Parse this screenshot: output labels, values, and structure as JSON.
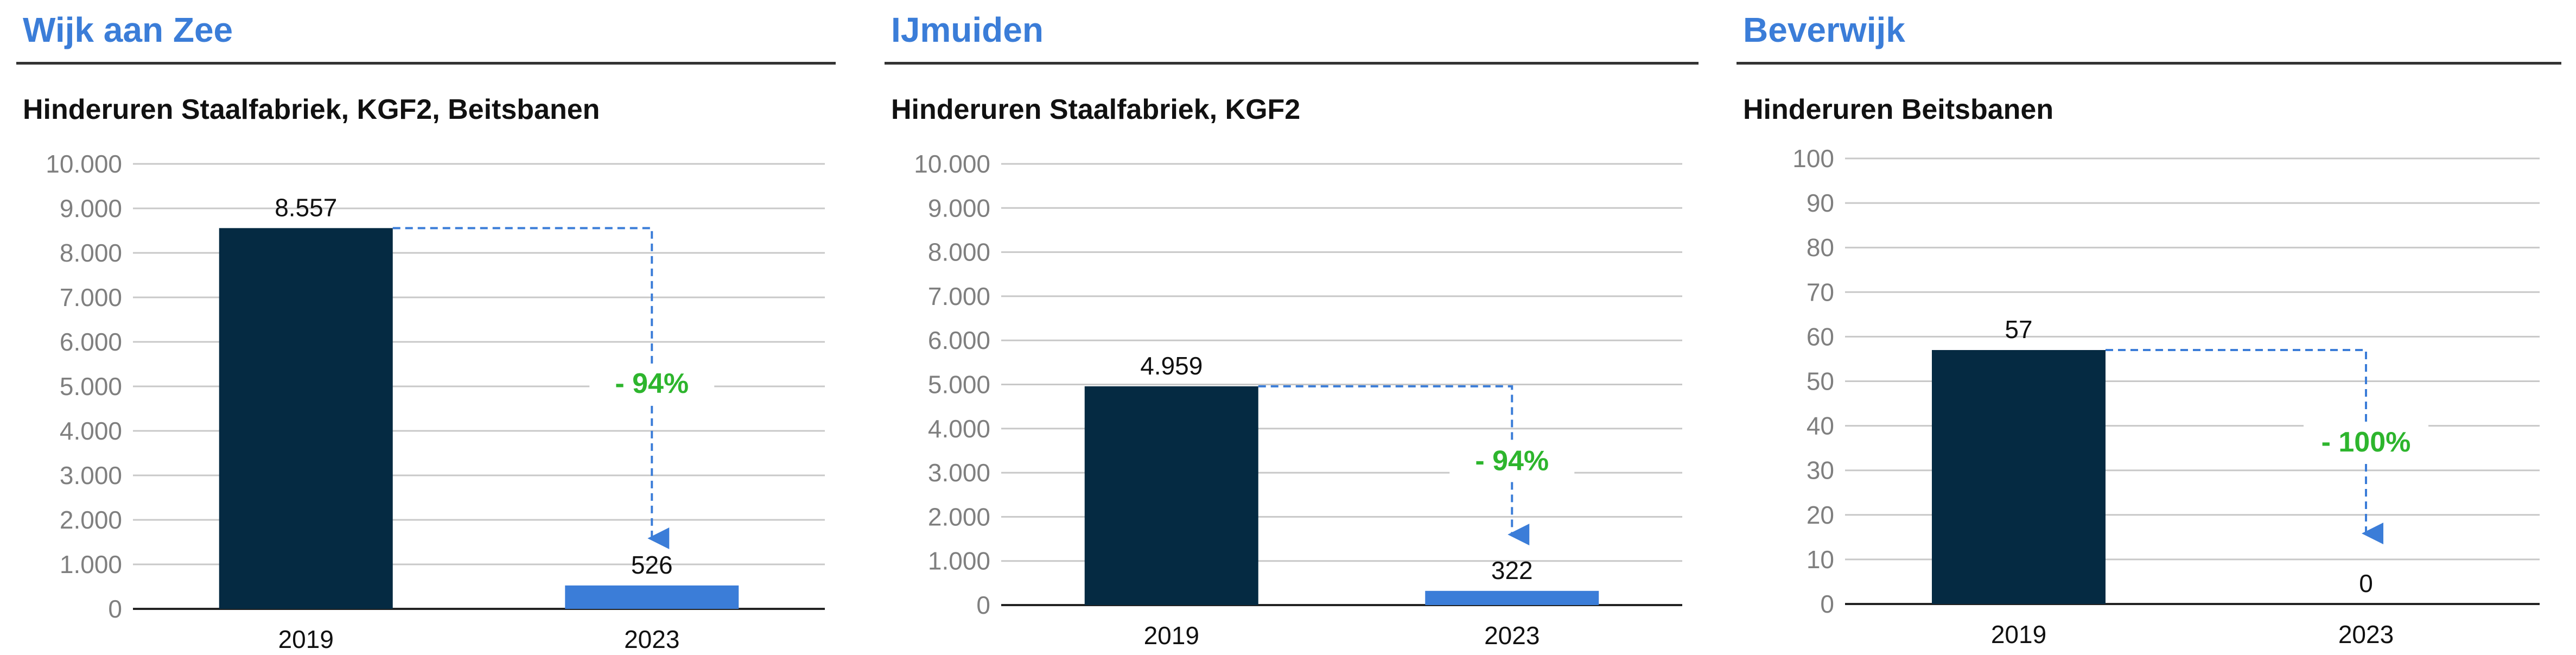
{
  "colors": {
    "title_blue": "#3B7DD8",
    "bar_2019": "#052A42",
    "bar_2023": "#3B7DD8",
    "change_green": "#2DB52D",
    "arrow_blue": "#3B7DD8",
    "grid": "#C8C8C8"
  },
  "panels": [
    {
      "region": "Wijk aan Zee",
      "chart_title": "Hinderuren Staalfabriek, KGF2, Beitsbanen",
      "change_label": "- 94%"
    },
    {
      "region": "IJmuiden",
      "chart_title": "Hinderuren Staalfabriek, KGF2",
      "change_label": "- 94%"
    },
    {
      "region": "Beverwijk",
      "chart_title": "Hinderuren Beitsbanen",
      "change_label": "- 100%"
    }
  ],
  "chart_data": [
    {
      "type": "bar",
      "title": "Hinderuren Staalfabriek, KGF2, Beitsbanen",
      "categories": [
        "2019",
        "2023"
      ],
      "values": [
        8557,
        526
      ],
      "value_labels": [
        "8.557",
        "526"
      ],
      "ylim": [
        0,
        10000
      ],
      "yticks": [
        0,
        1000,
        2000,
        3000,
        4000,
        5000,
        6000,
        7000,
        8000,
        9000,
        10000
      ],
      "ytick_labels": [
        "0",
        "1.000",
        "2.000",
        "3.000",
        "4.000",
        "5.000",
        "6.000",
        "7.000",
        "8.000",
        "9.000",
        "10.000"
      ],
      "grid": true,
      "annotation": "- 94%"
    },
    {
      "type": "bar",
      "title": "Hinderuren Staalfabriek, KGF2",
      "categories": [
        "2019",
        "2023"
      ],
      "values": [
        4959,
        322
      ],
      "value_labels": [
        "4.959",
        "322"
      ],
      "ylim": [
        0,
        10000
      ],
      "yticks": [
        0,
        1000,
        2000,
        3000,
        4000,
        5000,
        6000,
        7000,
        8000,
        9000,
        10000
      ],
      "ytick_labels": [
        "0",
        "1.000",
        "2.000",
        "3.000",
        "4.000",
        "5.000",
        "6.000",
        "7.000",
        "8.000",
        "9.000",
        "10.000"
      ],
      "grid": true,
      "annotation": "- 94%"
    },
    {
      "type": "bar",
      "title": "Hinderuren Beitsbanen",
      "categories": [
        "2019",
        "2023"
      ],
      "values": [
        57,
        0
      ],
      "value_labels": [
        "57",
        "0"
      ],
      "ylim": [
        0,
        100
      ],
      "yticks": [
        0,
        10,
        20,
        30,
        40,
        50,
        60,
        70,
        80,
        90,
        100
      ],
      "ytick_labels": [
        "0",
        "10",
        "20",
        "30",
        "40",
        "50",
        "60",
        "70",
        "80",
        "90",
        "100"
      ],
      "grid": true,
      "annotation": "- 100%"
    }
  ]
}
